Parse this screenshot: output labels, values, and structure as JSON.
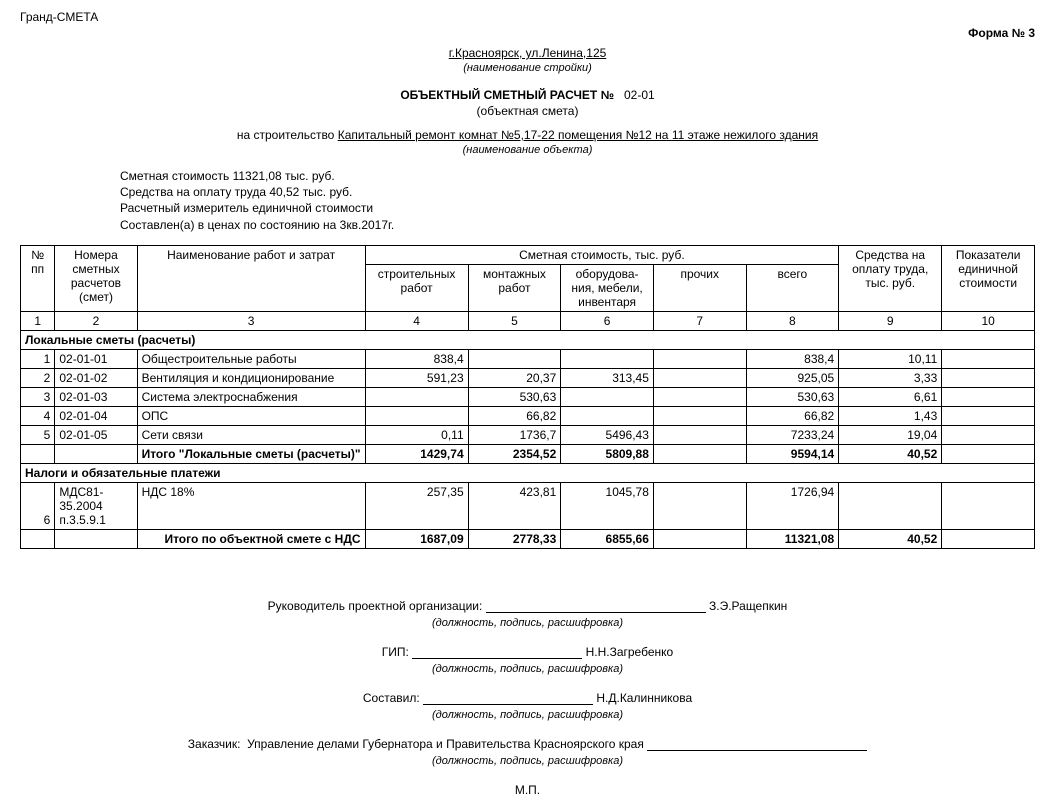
{
  "app_name": "Гранд-СМЕТА",
  "form_label": "Форма № 3",
  "address": "г.Красноярск, ул.Ленина,125",
  "address_caption": "(наименование стройки)",
  "title_prefix": "ОБЪЕКТНЫЙ СМЕТНЫЙ РАСЧЕТ №",
  "title_number": "02-01",
  "title_sub": "(объектная смета)",
  "construction_prefix": "на строительство",
  "construction_name": "Капитальный ремонт комнат №5,17-22 помещения №12 на 11 этаже нежилого здания",
  "construction_caption": "(наименование объекта)",
  "info": {
    "line1": "Сметная стоимость 11321,08 тыс. руб.",
    "line2": "Средства на оплату труда 40,52 тыс. руб.",
    "line3": "Расчетный измеритель единичной стоимости",
    "line4": "Составлен(а) в ценах по состоянию на 3кв.2017г."
  },
  "headers": {
    "num": "№ пп",
    "code": "Номера сметных расчетов (смет)",
    "name": "Наименование работ и затрат",
    "cost_group": "Сметная стоимость, тыс. руб.",
    "c1": "строительных работ",
    "c2": "монтажных работ",
    "c3": "оборудова-\nния, мебели, инвентаря",
    "c4": "прочих",
    "c5": "всего",
    "funds": "Средства на оплату труда, тыс. руб.",
    "indicator": "Показатели единичной стоимости",
    "hn1": "1",
    "hn2": "2",
    "hn3": "3",
    "hn4": "4",
    "hn5": "5",
    "hn6": "6",
    "hn7": "7",
    "hn8": "8",
    "hn9": "9",
    "hn10": "10"
  },
  "section1_title": "Локальные сметы (расчеты)",
  "rows": [
    {
      "n": "1",
      "code": "02-01-01",
      "name": "Общестроительные работы",
      "c1": "838,4",
      "c2": "",
      "c3": "",
      "c4": "",
      "c5": "838,4",
      "funds": "10,11",
      "ind": ""
    },
    {
      "n": "2",
      "code": "02-01-02",
      "name": "Вентиляция и кондиционирование",
      "c1": "591,23",
      "c2": "20,37",
      "c3": "313,45",
      "c4": "",
      "c5": "925,05",
      "funds": "3,33",
      "ind": ""
    },
    {
      "n": "3",
      "code": "02-01-03",
      "name": "Система электроснабжения",
      "c1": "",
      "c2": "530,63",
      "c3": "",
      "c4": "",
      "c5": "530,63",
      "funds": "6,61",
      "ind": ""
    },
    {
      "n": "4",
      "code": "02-01-04",
      "name": "ОПС",
      "c1": "",
      "c2": "66,82",
      "c3": "",
      "c4": "",
      "c5": "66,82",
      "funds": "1,43",
      "ind": ""
    },
    {
      "n": "5",
      "code": "02-01-05",
      "name": "Сети связи",
      "c1": "0,11",
      "c2": "1736,7",
      "c3": "5496,43",
      "c4": "",
      "c5": "7233,24",
      "funds": "19,04",
      "ind": ""
    }
  ],
  "subtotal1": {
    "name": "Итого \"Локальные сметы (расчеты)\"",
    "c1": "1429,74",
    "c2": "2354,52",
    "c3": "5809,88",
    "c4": "",
    "c5": "9594,14",
    "funds": "40,52",
    "ind": ""
  },
  "section2_title": "Налоги и обязательные платежи",
  "tax_row": {
    "n": "6",
    "code": "МДС81-35.2004 п.3.5.9.1",
    "name": "НДС 18%",
    "c1": "257,35",
    "c2": "423,81",
    "c3": "1045,78",
    "c4": "",
    "c5": "1726,94",
    "funds": "",
    "ind": ""
  },
  "grand_total": {
    "name": "Итого по объектной смете с НДС",
    "c1": "1687,09",
    "c2": "2778,33",
    "c3": "6855,66",
    "c4": "",
    "c5": "11321,08",
    "funds": "40,52",
    "ind": ""
  },
  "signatures": {
    "lead_label": "Руководитель проектной организации:",
    "lead_name": "З.Э.Ращепкин",
    "gip_label": "ГИП:",
    "gip_name": "Н.Н.Загребенко",
    "compiled_label": "Составил:",
    "compiled_name": "Н.Д.Калинникова",
    "customer_label": "Заказчик:",
    "customer_name": "Управление делами Губернатора и Правительства Красноярского края",
    "caption": "(должность, подпись, расшифровка)",
    "mp": "М.П."
  },
  "style": {
    "sign_line_width_lead": "220px",
    "sign_line_width_gip": "170px",
    "sign_line_width_comp": "170px",
    "sign_line_width_cust": "220px"
  }
}
